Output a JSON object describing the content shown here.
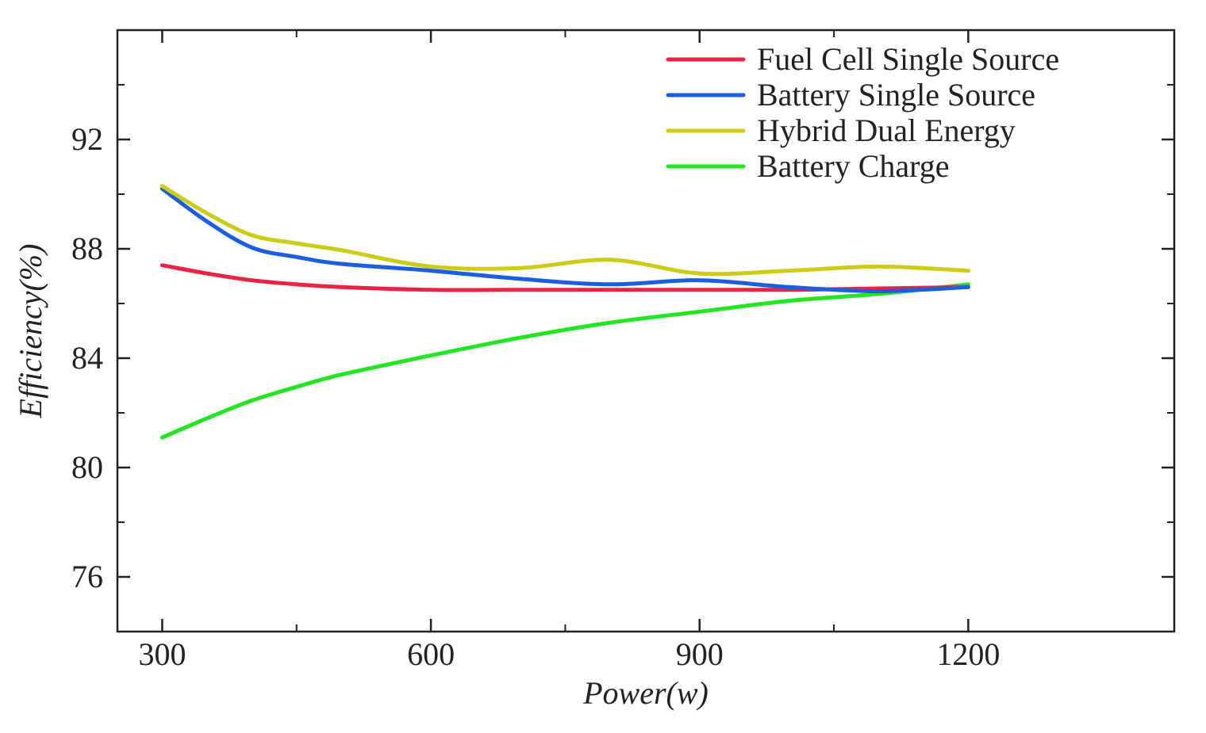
{
  "chart_data": {
    "type": "line",
    "title": "",
    "xlabel": "Power(w)",
    "ylabel": "Efficiency(%)",
    "xlim": [
      250,
      1430
    ],
    "ylim": [
      74,
      96
    ],
    "x_ticks": [
      300,
      600,
      900,
      1200
    ],
    "x_ticks_minor": [
      450,
      750,
      1050
    ],
    "y_ticks": [
      76,
      80,
      84,
      88,
      92
    ],
    "y_ticks_minor": [
      78,
      82,
      86,
      90,
      94
    ],
    "x_tick_labels": [
      "300",
      "600",
      "900",
      "1200"
    ],
    "y_tick_labels": [
      "76",
      "80",
      "84",
      "88",
      "92"
    ],
    "grid": false,
    "legend_position": "top-right",
    "series": [
      {
        "name": "Fuel Cell Single Source",
        "color": "#ee2244",
        "x": [
          300,
          350,
          400,
          450,
          500,
          600,
          700,
          800,
          900,
          1000,
          1100,
          1200
        ],
        "y": [
          87.4,
          87.1,
          86.85,
          86.7,
          86.6,
          86.5,
          86.5,
          86.5,
          86.5,
          86.5,
          86.55,
          86.6
        ]
      },
      {
        "name": "Battery Single Source",
        "color": "#1a5fe0",
        "x": [
          300,
          350,
          400,
          450,
          500,
          600,
          700,
          800,
          900,
          1000,
          1100,
          1200
        ],
        "y": [
          90.2,
          89.0,
          88.05,
          87.7,
          87.45,
          87.2,
          86.9,
          86.7,
          86.85,
          86.6,
          86.45,
          86.6
        ]
      },
      {
        "name": "Hybrid Dual Energy",
        "color": "#cccc14",
        "x": [
          300,
          350,
          400,
          450,
          500,
          600,
          700,
          800,
          900,
          1000,
          1100,
          1200
        ],
        "y": [
          90.3,
          89.3,
          88.5,
          88.2,
          87.95,
          87.35,
          87.3,
          87.6,
          87.1,
          87.2,
          87.35,
          87.2
        ]
      },
      {
        "name": "Battery Charge",
        "color": "#22e622",
        "x": [
          300,
          350,
          400,
          450,
          500,
          600,
          700,
          800,
          900,
          1000,
          1100,
          1200
        ],
        "y": [
          81.1,
          81.8,
          82.45,
          82.95,
          83.4,
          84.1,
          84.75,
          85.3,
          85.7,
          86.1,
          86.35,
          86.7
        ]
      }
    ]
  }
}
